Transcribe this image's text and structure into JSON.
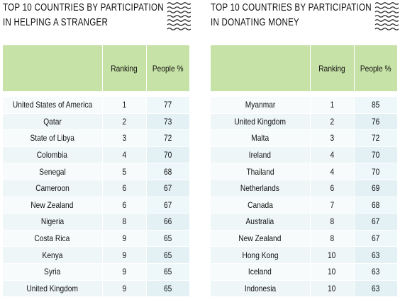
{
  "left": {
    "title_line1": "TOP 10 COUNTRIES BY PARTICIPATION",
    "title_line2": "IN HELPING A STRANGER",
    "header": {
      "country": "",
      "ranking": "Ranking",
      "people": "People %"
    },
    "rows": [
      {
        "country": "United States of America",
        "rank": "1",
        "pct": "77"
      },
      {
        "country": "Qatar",
        "rank": "2",
        "pct": "73"
      },
      {
        "country": "State of Libya",
        "rank": "3",
        "pct": "72"
      },
      {
        "country": "Colombia",
        "rank": "4",
        "pct": "70"
      },
      {
        "country": "Senegal",
        "rank": "5",
        "pct": "68"
      },
      {
        "country": "Cameroon",
        "rank": "6",
        "pct": "67"
      },
      {
        "country": "New Zealand",
        "rank": "6",
        "pct": "67"
      },
      {
        "country": "Nigeria",
        "rank": "8",
        "pct": "66"
      },
      {
        "country": "Costa Rica",
        "rank": "9",
        "pct": "65"
      },
      {
        "country": "Kenya",
        "rank": "9",
        "pct": "65"
      },
      {
        "country": "Syria",
        "rank": "9",
        "pct": "65"
      },
      {
        "country": "United Kingdom",
        "rank": "9",
        "pct": "65"
      }
    ]
  },
  "right": {
    "title_line1": "TOP 10 COUNTRIES BY PARTICIPATION",
    "title_line2": "IN DONATING MONEY",
    "header": {
      "country": "",
      "ranking": "Ranking",
      "people": "People %"
    },
    "rows": [
      {
        "country": "Myanmar",
        "rank": "1",
        "pct": "85"
      },
      {
        "country": "United Kingdom",
        "rank": "2",
        "pct": "76"
      },
      {
        "country": "Malta",
        "rank": "3",
        "pct": "72"
      },
      {
        "country": "Ireland",
        "rank": "4",
        "pct": "70"
      },
      {
        "country": "Thailand",
        "rank": "4",
        "pct": "70"
      },
      {
        "country": "Netherlands",
        "rank": "6",
        "pct": "69"
      },
      {
        "country": "Canada",
        "rank": "7",
        "pct": "68"
      },
      {
        "country": "Australia",
        "rank": "8",
        "pct": "67"
      },
      {
        "country": "New Zealand",
        "rank": "8",
        "pct": "67"
      },
      {
        "country": "Hong Kong",
        "rank": "10",
        "pct": "63"
      },
      {
        "country": "Iceland",
        "rank": "10",
        "pct": "63"
      },
      {
        "country": "Indonesia",
        "rank": "10",
        "pct": "63"
      }
    ]
  },
  "icons": {
    "title_decoration": "wavy-lines-icon"
  }
}
